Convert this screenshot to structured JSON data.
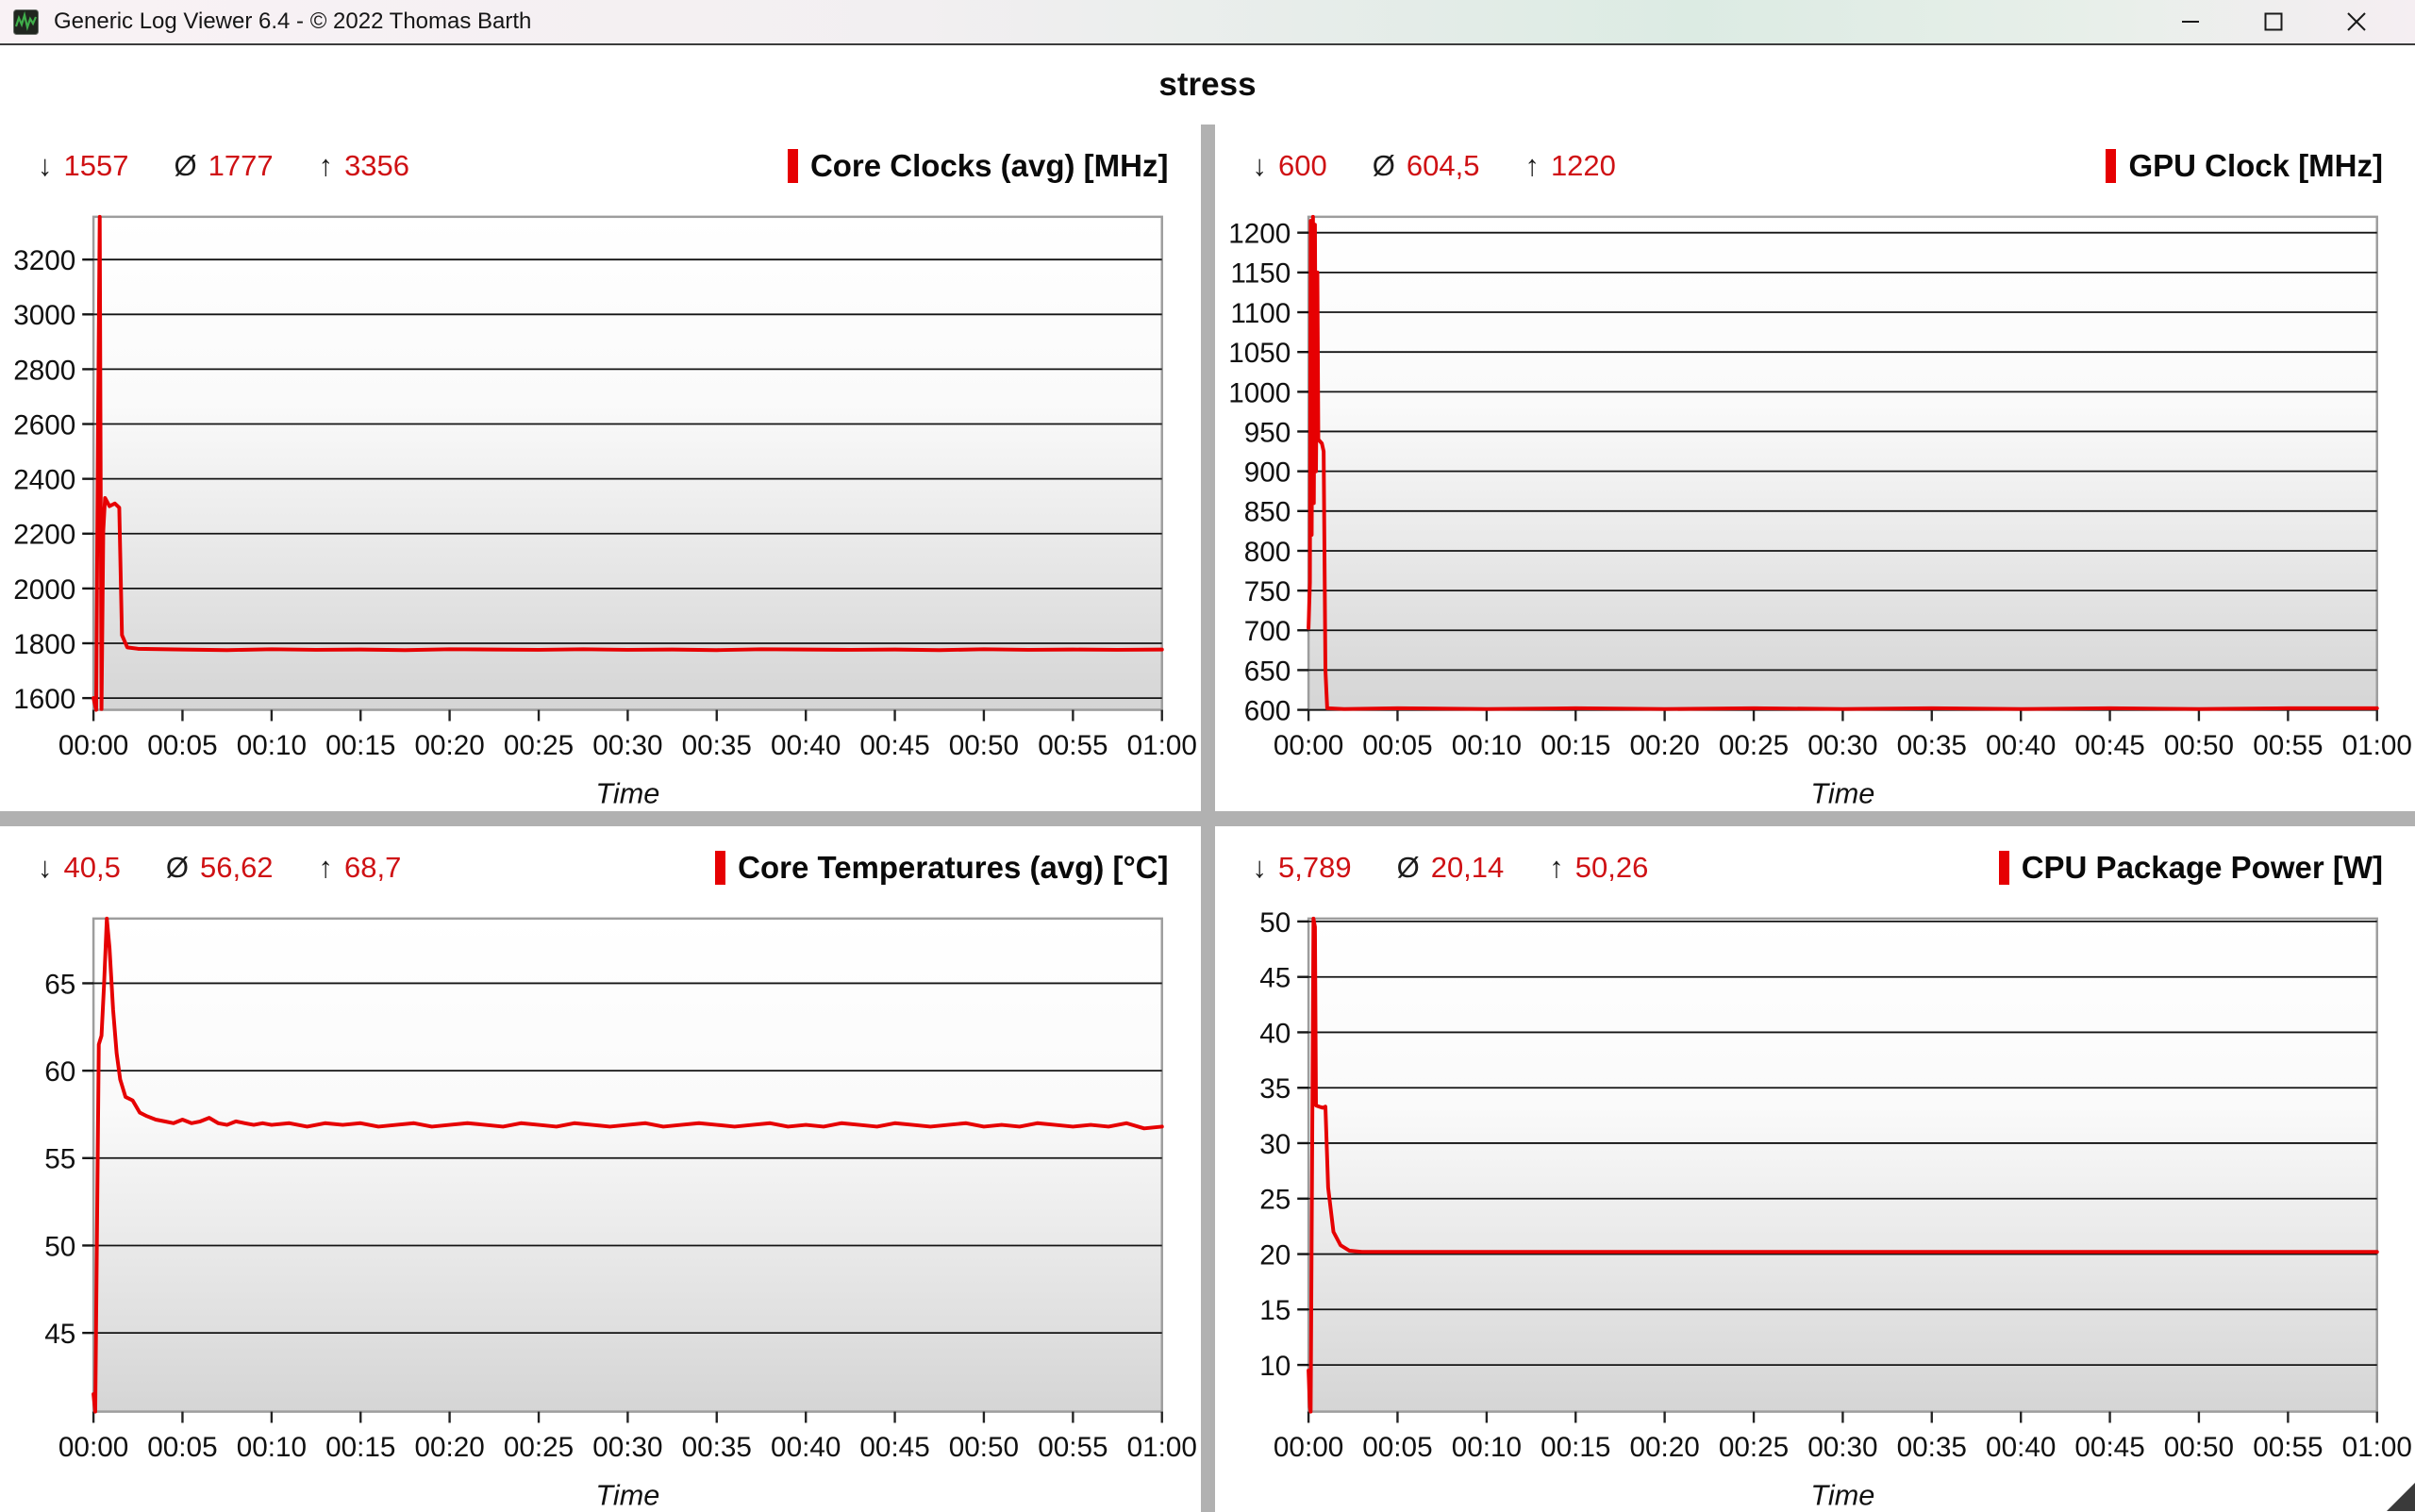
{
  "title_bar": {
    "app_icon": "green-waveform-logo",
    "title": "Generic Log Viewer 6.4 - © 2022 Thomas Barth",
    "minimize_icon": "minimize",
    "maximize_icon": "maximize",
    "close_icon": "close"
  },
  "page_title": "stress",
  "stat_glyphs": {
    "min": "↓",
    "avg": "Ø",
    "max": "↑"
  },
  "colors": {
    "series_red": "#e60002",
    "stat_value_red": "#cf1114",
    "divider_gray": "#b1b1b1",
    "grid_line": "#141414",
    "plot_frame": "#9d9d9d"
  },
  "chart_data": [
    {
      "type": "line",
      "title": "Core Clocks (avg) [MHz]",
      "stats": {
        "min": "1557",
        "avg": "1777",
        "max": "3356"
      },
      "xlabel": "Time",
      "x_ticks": [
        "00:00",
        "00:05",
        "00:10",
        "00:15",
        "00:20",
        "00:25",
        "00:30",
        "00:35",
        "00:40",
        "00:45",
        "00:50",
        "00:55",
        "01:00"
      ],
      "x_range_minutes": [
        0,
        60
      ],
      "ylim": [
        1557,
        3356
      ],
      "y_ticks": [
        1600,
        1800,
        2000,
        2200,
        2400,
        2600,
        2800,
        3000,
        3200
      ],
      "grid": true,
      "legend_position": "top-right",
      "series": [
        {
          "name": "Core Clocks (avg) [MHz]",
          "color": "#e60002",
          "points": [
            [
              0,
              1600
            ],
            [
              0.15,
              1557
            ],
            [
              0.25,
              2560
            ],
            [
              0.35,
              3356
            ],
            [
              0.45,
              1560
            ],
            [
              0.55,
              2210
            ],
            [
              0.65,
              2330
            ],
            [
              0.9,
              2300
            ],
            [
              1.2,
              2310
            ],
            [
              1.45,
              2295
            ],
            [
              1.6,
              1830
            ],
            [
              1.9,
              1785
            ],
            [
              2.5,
              1780
            ],
            [
              5,
              1777
            ],
            [
              7.5,
              1775
            ],
            [
              10,
              1778
            ],
            [
              12.5,
              1776
            ],
            [
              15,
              1777
            ],
            [
              17.5,
              1775
            ],
            [
              20,
              1778
            ],
            [
              22.5,
              1777
            ],
            [
              25,
              1776
            ],
            [
              27.5,
              1778
            ],
            [
              30,
              1776
            ],
            [
              32.5,
              1777
            ],
            [
              35,
              1775
            ],
            [
              37.5,
              1778
            ],
            [
              40,
              1777
            ],
            [
              42.5,
              1776
            ],
            [
              45,
              1777
            ],
            [
              47.5,
              1775
            ],
            [
              50,
              1778
            ],
            [
              52.5,
              1776
            ],
            [
              55,
              1777
            ],
            [
              57.5,
              1776
            ],
            [
              60,
              1777
            ]
          ]
        }
      ]
    },
    {
      "type": "line",
      "title": "GPU Clock [MHz]",
      "stats": {
        "min": "600",
        "avg": "604,5",
        "max": "1220"
      },
      "xlabel": "Time",
      "x_ticks": [
        "00:00",
        "00:05",
        "00:10",
        "00:15",
        "00:20",
        "00:25",
        "00:30",
        "00:35",
        "00:40",
        "00:45",
        "00:50",
        "00:55",
        "01:00"
      ],
      "x_range_minutes": [
        0,
        60
      ],
      "ylim": [
        600,
        1220
      ],
      "y_ticks": [
        600,
        650,
        700,
        750,
        800,
        850,
        900,
        950,
        1000,
        1050,
        1100,
        1150,
        1200
      ],
      "grid": true,
      "legend_position": "top-right",
      "series": [
        {
          "name": "GPU Clock [MHz]",
          "color": "#e60002",
          "points": [
            [
              0,
              703
            ],
            [
              0.08,
              760
            ],
            [
              0.12,
              1215
            ],
            [
              0.18,
              820
            ],
            [
              0.25,
              1220
            ],
            [
              0.3,
              860
            ],
            [
              0.36,
              1210
            ],
            [
              0.42,
              900
            ],
            [
              0.5,
              1150
            ],
            [
              0.55,
              940
            ],
            [
              0.75,
              935
            ],
            [
              0.85,
              925
            ],
            [
              0.95,
              650
            ],
            [
              1.05,
              602
            ],
            [
              2,
              601
            ],
            [
              5,
              602
            ],
            [
              10,
              601
            ],
            [
              15,
              602
            ],
            [
              20,
              601
            ],
            [
              25,
              602
            ],
            [
              30,
              601
            ],
            [
              35,
              602
            ],
            [
              40,
              601
            ],
            [
              45,
              602
            ],
            [
              50,
              601
            ],
            [
              55,
              602
            ],
            [
              60,
              602
            ]
          ]
        }
      ]
    },
    {
      "type": "line",
      "title": "Core Temperatures (avg) [°C]",
      "stats": {
        "min": "40,5",
        "avg": "56,62",
        "max": "68,7"
      },
      "xlabel": "Time",
      "x_ticks": [
        "00:00",
        "00:05",
        "00:10",
        "00:15",
        "00:20",
        "00:25",
        "00:30",
        "00:35",
        "00:40",
        "00:45",
        "00:50",
        "00:55",
        "01:00"
      ],
      "x_range_minutes": [
        0,
        60
      ],
      "ylim": [
        40.5,
        68.7
      ],
      "y_ticks": [
        45,
        50,
        55,
        60,
        65
      ],
      "grid": true,
      "legend_position": "top-right",
      "series": [
        {
          "name": "Core Temperatures (avg) [°C]",
          "color": "#e60002",
          "points": [
            [
              0,
              41.5
            ],
            [
              0.1,
              40.5
            ],
            [
              0.3,
              61.5
            ],
            [
              0.45,
              62
            ],
            [
              0.6,
              65
            ],
            [
              0.75,
              68.7
            ],
            [
              0.9,
              67
            ],
            [
              1.1,
              63.5
            ],
            [
              1.3,
              61
            ],
            [
              1.5,
              59.5
            ],
            [
              1.8,
              58.5
            ],
            [
              2.2,
              58.3
            ],
            [
              2.6,
              57.6
            ],
            [
              3,
              57.4
            ],
            [
              3.5,
              57.2
            ],
            [
              4,
              57.1
            ],
            [
              4.5,
              57
            ],
            [
              5,
              57.2
            ],
            [
              5.5,
              57
            ],
            [
              6,
              57.1
            ],
            [
              6.5,
              57.3
            ],
            [
              7,
              57
            ],
            [
              7.5,
              56.9
            ],
            [
              8,
              57.1
            ],
            [
              8.5,
              57
            ],
            [
              9,
              56.9
            ],
            [
              9.5,
              57
            ],
            [
              10,
              56.9
            ],
            [
              11,
              57
            ],
            [
              12,
              56.8
            ],
            [
              13,
              57
            ],
            [
              14,
              56.9
            ],
            [
              15,
              57
            ],
            [
              16,
              56.8
            ],
            [
              17,
              56.9
            ],
            [
              18,
              57
            ],
            [
              19,
              56.8
            ],
            [
              20,
              56.9
            ],
            [
              21,
              57
            ],
            [
              22,
              56.9
            ],
            [
              23,
              56.8
            ],
            [
              24,
              57
            ],
            [
              25,
              56.9
            ],
            [
              26,
              56.8
            ],
            [
              27,
              57
            ],
            [
              28,
              56.9
            ],
            [
              29,
              56.8
            ],
            [
              30,
              56.9
            ],
            [
              31,
              57
            ],
            [
              32,
              56.8
            ],
            [
              33,
              56.9
            ],
            [
              34,
              57
            ],
            [
              35,
              56.9
            ],
            [
              36,
              56.8
            ],
            [
              37,
              56.9
            ],
            [
              38,
              57
            ],
            [
              39,
              56.8
            ],
            [
              40,
              56.9
            ],
            [
              41,
              56.8
            ],
            [
              42,
              57
            ],
            [
              43,
              56.9
            ],
            [
              44,
              56.8
            ],
            [
              45,
              57
            ],
            [
              46,
              56.9
            ],
            [
              47,
              56.8
            ],
            [
              48,
              56.9
            ],
            [
              49,
              57
            ],
            [
              50,
              56.8
            ],
            [
              51,
              56.9
            ],
            [
              52,
              56.8
            ],
            [
              53,
              57
            ],
            [
              54,
              56.9
            ],
            [
              55,
              56.8
            ],
            [
              56,
              56.9
            ],
            [
              57,
              56.8
            ],
            [
              58,
              57
            ],
            [
              59,
              56.7
            ],
            [
              60,
              56.8
            ]
          ]
        }
      ]
    },
    {
      "type": "line",
      "title": "CPU Package Power [W]",
      "stats": {
        "min": "5,789",
        "avg": "20,14",
        "max": "50,26"
      },
      "xlabel": "Time",
      "x_ticks": [
        "00:00",
        "00:05",
        "00:10",
        "00:15",
        "00:20",
        "00:25",
        "00:30",
        "00:35",
        "00:40",
        "00:45",
        "00:50",
        "00:55",
        "01:00"
      ],
      "x_range_minutes": [
        0,
        60
      ],
      "ylim": [
        5.789,
        50.26
      ],
      "y_ticks": [
        10,
        15,
        20,
        25,
        30,
        35,
        40,
        45,
        50
      ],
      "grid": true,
      "legend_position": "top-right",
      "series": [
        {
          "name": "CPU Package Power [W]",
          "color": "#e60002",
          "points": [
            [
              0,
              9.5
            ],
            [
              0.08,
              6.2
            ],
            [
              0.12,
              5.789
            ],
            [
              0.2,
              28
            ],
            [
              0.28,
              50.26
            ],
            [
              0.36,
              49.5
            ],
            [
              0.42,
              33.4
            ],
            [
              0.6,
              33.3
            ],
            [
              0.8,
              33.2
            ],
            [
              0.95,
              33.3
            ],
            [
              1.1,
              26
            ],
            [
              1.4,
              22
            ],
            [
              1.8,
              20.8
            ],
            [
              2.3,
              20.3
            ],
            [
              3,
              20.2
            ],
            [
              5,
              20.2
            ],
            [
              10,
              20.2
            ],
            [
              15,
              20.2
            ],
            [
              20,
              20.2
            ],
            [
              25,
              20.2
            ],
            [
              30,
              20.2
            ],
            [
              35,
              20.2
            ],
            [
              40,
              20.2
            ],
            [
              45,
              20.2
            ],
            [
              50,
              20.2
            ],
            [
              55,
              20.2
            ],
            [
              60,
              20.2
            ]
          ]
        }
      ]
    }
  ]
}
